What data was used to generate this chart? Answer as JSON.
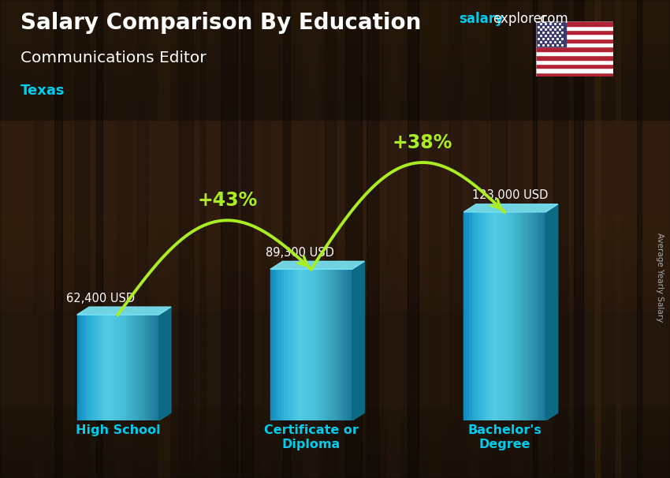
{
  "title_main": "Salary Comparison By Education",
  "title_sub": "Communications Editor",
  "title_location": "Texas",
  "categories": [
    "High School",
    "Certificate or\nDiploma",
    "Bachelor's\nDegree"
  ],
  "values": [
    62400,
    89300,
    123000
  ],
  "value_labels": [
    "62,400 USD",
    "89,300 USD",
    "123,000 USD"
  ],
  "bar_color_front": "#29c4e8",
  "bar_color_left": "#1ba8cc",
  "bar_color_right": "#0e7a99",
  "bar_color_top": "#5dd8f0",
  "pct_labels": [
    "+43%",
    "+38%"
  ],
  "arrow_color": "#aaee22",
  "bg_color": "#2a1a0e",
  "text_color_white": "#ffffff",
  "text_color_cyan": "#00ccee",
  "text_color_green": "#aaee22",
  "site_color_salary": "#00ccee",
  "site_color_explorer": "#ffffff",
  "ylabel_side": "Average Yearly Salary",
  "ylim": [
    0,
    155000
  ],
  "x_positions": [
    1.0,
    2.7,
    4.4
  ],
  "bar_width": 0.72
}
